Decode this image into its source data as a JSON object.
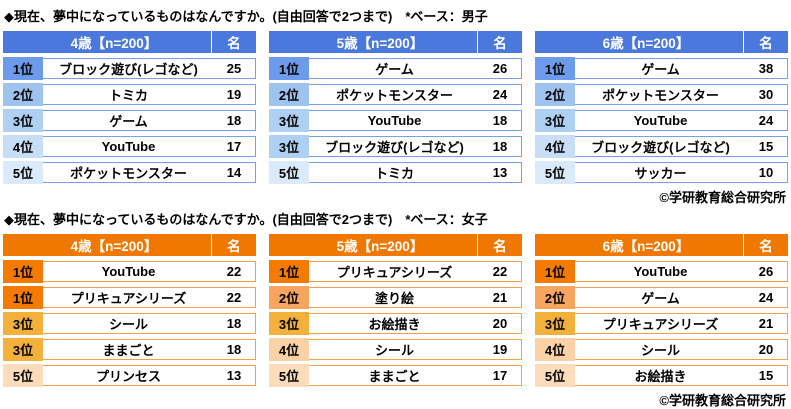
{
  "page": {
    "background": "#ffffff",
    "copyright": "©学研教育総合研究所"
  },
  "columns": {
    "count_header": "名"
  },
  "sections": [
    {
      "name": "boys",
      "group": "男子",
      "title": "◆現在、夢中になっているものはなんですか。(自由回答で2つまで)　*ベース：男子",
      "theme": {
        "header_bg": "#4a78dc",
        "header_text": "#ffffff",
        "border": "#78a0e8",
        "rank_colors": {
          "1": "#6d9beb",
          "2": "#9fc3ef",
          "3": "#aed0f2",
          "4": "#c8ddf6",
          "5": "#dbeafa"
        }
      }
    },
    {
      "name": "girls",
      "group": "女子",
      "title": "◆現在、夢中になっているものはなんですか。(自由回答で2つまで)　*ベース：女子",
      "theme": {
        "header_bg": "#f07800",
        "header_text": "#ffffff",
        "border": "#f5a04d",
        "rank_colors": {
          "1": "#f57b00",
          "2": "#f9a45f",
          "3": "#f3b13c",
          "4": "#fbd2a6",
          "5": "#fcdcba"
        }
      }
    }
  ],
  "chart_data": [
    {
      "type": "table",
      "group": "男子",
      "title": "4歳【n=200】",
      "count_label": "名",
      "rows": [
        [
          "1位",
          "ブロック遊び(レゴなど)",
          25
        ],
        [
          "2位",
          "トミカ",
          19
        ],
        [
          "3位",
          "ゲーム",
          18
        ],
        [
          "4位",
          "YouTube",
          17
        ],
        [
          "5位",
          "ポケットモンスター",
          14
        ]
      ]
    },
    {
      "type": "table",
      "group": "男子",
      "title": "5歳【n=200】",
      "count_label": "名",
      "rows": [
        [
          "1位",
          "ゲーム",
          26
        ],
        [
          "2位",
          "ポケットモンスター",
          24
        ],
        [
          "3位",
          "YouTube",
          18
        ],
        [
          "3位",
          "ブロック遊び(レゴなど)",
          18
        ],
        [
          "5位",
          "トミカ",
          13
        ]
      ]
    },
    {
      "type": "table",
      "group": "男子",
      "title": "6歳【n=200】",
      "count_label": "名",
      "rows": [
        [
          "1位",
          "ゲーム",
          38
        ],
        [
          "2位",
          "ポケットモンスター",
          30
        ],
        [
          "3位",
          "YouTube",
          24
        ],
        [
          "4位",
          "ブロック遊び(レゴなど)",
          15
        ],
        [
          "5位",
          "サッカー",
          10
        ]
      ]
    },
    {
      "type": "table",
      "group": "女子",
      "title": "4歳【n=200】",
      "count_label": "名",
      "rows": [
        [
          "1位",
          "YouTube",
          22
        ],
        [
          "1位",
          "プリキュアシリーズ",
          22
        ],
        [
          "3位",
          "シール",
          18
        ],
        [
          "3位",
          "ままごと",
          18
        ],
        [
          "5位",
          "プリンセス",
          13
        ]
      ]
    },
    {
      "type": "table",
      "group": "女子",
      "title": "5歳【n=200】",
      "count_label": "名",
      "rows": [
        [
          "1位",
          "プリキュアシリーズ",
          22
        ],
        [
          "2位",
          "塗り絵",
          21
        ],
        [
          "3位",
          "お絵描き",
          20
        ],
        [
          "4位",
          "シール",
          19
        ],
        [
          "5位",
          "ままごと",
          17
        ]
      ]
    },
    {
      "type": "table",
      "group": "女子",
      "title": "6歳【n=200】",
      "count_label": "名",
      "rows": [
        [
          "1位",
          "YouTube",
          26
        ],
        [
          "2位",
          "ゲーム",
          24
        ],
        [
          "3位",
          "プリキュアシリーズ",
          21
        ],
        [
          "4位",
          "シール",
          20
        ],
        [
          "5位",
          "お絵描き",
          15
        ]
      ]
    }
  ]
}
